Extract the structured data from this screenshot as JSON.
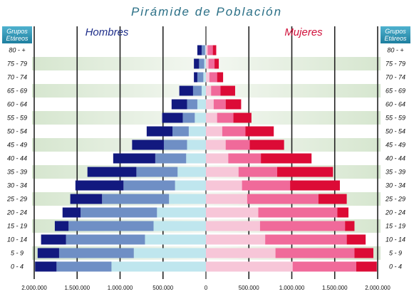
{
  "chart_data": {
    "type": "bar",
    "subtype": "population-pyramid",
    "title": "Pirámide de Población",
    "group_label_line1": "Grupos",
    "group_label_line2": "Etáreos",
    "left_label": "Hombres",
    "right_label": "Mujeres",
    "categories": [
      "0 - 4",
      "5 - 9",
      "10 - 14",
      "15 - 19",
      "20 - 24",
      "25 - 29",
      "30 - 34",
      "35 - 39",
      "40 - 44",
      "45 - 49",
      "50 - 54",
      "55 - 59",
      "60 - 64",
      "65 - 69",
      "70 - 74",
      "75 - 79",
      "80 - +"
    ],
    "series": [
      {
        "name": "Hombres",
        "side": "left",
        "segments": [
          [
            1100000,
            640000,
            250000
          ],
          [
            840000,
            870000,
            250000
          ],
          [
            710000,
            920000,
            290000
          ],
          [
            610000,
            990000,
            160000
          ],
          [
            570000,
            890000,
            210000
          ],
          [
            430000,
            780000,
            370000
          ],
          [
            360000,
            600000,
            560000
          ],
          [
            330000,
            480000,
            570000
          ],
          [
            230000,
            360000,
            490000
          ],
          [
            220000,
            270000,
            370000
          ],
          [
            200000,
            190000,
            300000
          ],
          [
            130000,
            140000,
            240000
          ],
          [
            100000,
            120000,
            180000
          ],
          [
            50000,
            100000,
            160000
          ],
          [
            30000,
            70000,
            40000
          ],
          [
            20000,
            60000,
            60000
          ],
          [
            10000,
            40000,
            50000
          ]
        ]
      },
      {
        "name": "Mujeres",
        "side": "right",
        "segments": [
          [
            1010000,
            740000,
            240000
          ],
          [
            810000,
            920000,
            220000
          ],
          [
            690000,
            950000,
            220000
          ],
          [
            630000,
            990000,
            110000
          ],
          [
            610000,
            920000,
            130000
          ],
          [
            480000,
            830000,
            330000
          ],
          [
            420000,
            560000,
            580000
          ],
          [
            380000,
            450000,
            650000
          ],
          [
            260000,
            380000,
            590000
          ],
          [
            230000,
            280000,
            400000
          ],
          [
            190000,
            270000,
            330000
          ],
          [
            130000,
            190000,
            210000
          ],
          [
            90000,
            140000,
            180000
          ],
          [
            60000,
            110000,
            170000
          ],
          [
            40000,
            90000,
            70000
          ],
          [
            30000,
            70000,
            50000
          ],
          [
            20000,
            60000,
            40000
          ]
        ]
      }
    ],
    "xlim": [
      -2000000,
      2000000
    ],
    "x_ticks": [
      "2.000.000",
      "1.500.000",
      "1.000.000",
      "500.000",
      "0",
      "500.000",
      "1.000.000",
      "1.500.000",
      "2.000.000"
    ],
    "colors": {
      "male": [
        "#bfe6ee",
        "#6f8fc5",
        "#12197f"
      ],
      "female": [
        "#f7c6d8",
        "#f06a9a",
        "#dc0b36"
      ],
      "title": "#2a6f86",
      "header_box": "#2f95b4"
    }
  }
}
